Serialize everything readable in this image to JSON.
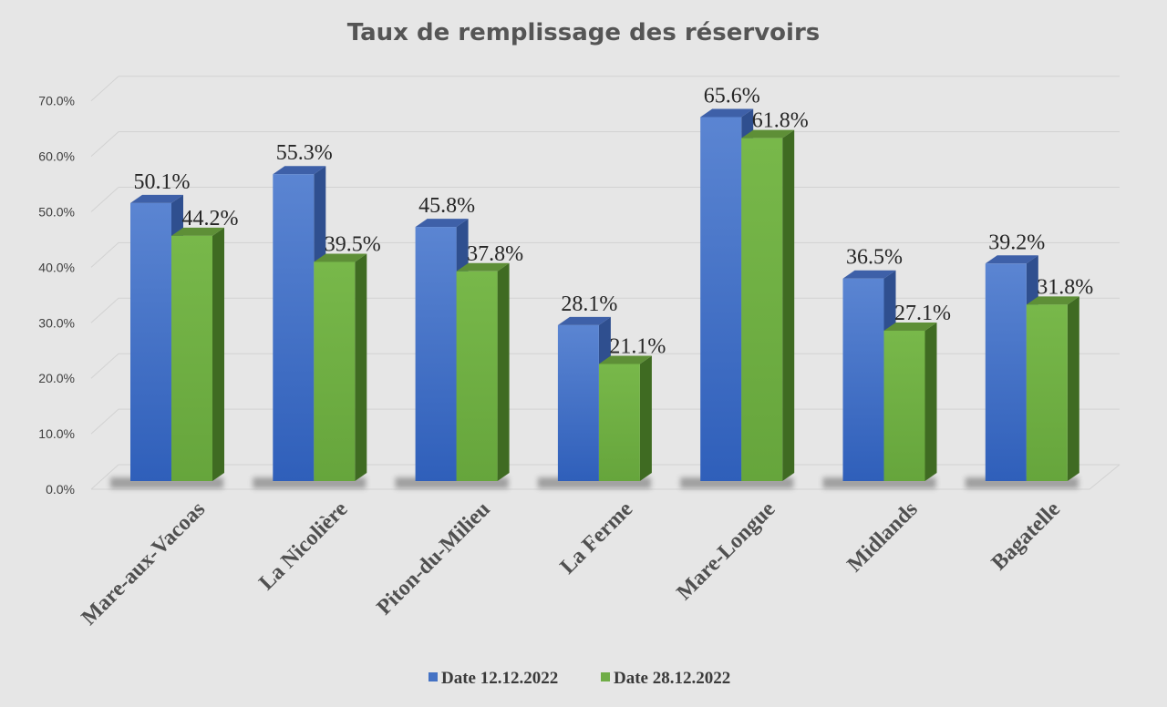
{
  "chart_data": {
    "type": "bar",
    "title": "Taux de remplissage des réservoirs",
    "categories": [
      "Mare-aux-Vacoas",
      "La Nicolière",
      "Piton-du-Milieu",
      "La Ferme",
      "Mare-Longue",
      "Midlands",
      "Bagatelle"
    ],
    "series": [
      {
        "name": "Date 12.12.2022",
        "color": "#4472c4",
        "values": [
          50.1,
          55.3,
          45.8,
          28.1,
          65.6,
          36.5,
          39.2
        ],
        "labels": [
          "50.1%",
          "55.3%",
          "45.8%",
          "28.1%",
          "65.6%",
          "36.5%",
          "39.2%"
        ]
      },
      {
        "name": "Date 28.12.2022",
        "color": "#70ad47",
        "values": [
          44.2,
          39.5,
          37.8,
          21.1,
          61.8,
          27.1,
          31.8
        ],
        "labels": [
          "44.2%",
          "39.5%",
          "37.8%",
          "21.1%",
          "61.8%",
          "27.1%",
          "31.8%"
        ]
      }
    ],
    "ylim": [
      0,
      70
    ],
    "yticks": [
      "0.0%",
      "10.0%",
      "20.0%",
      "30.0%",
      "40.0%",
      "50.0%",
      "60.0%",
      "70.0%"
    ],
    "grid": true,
    "style": "3d-clustered-column",
    "legend_position": "bottom"
  }
}
